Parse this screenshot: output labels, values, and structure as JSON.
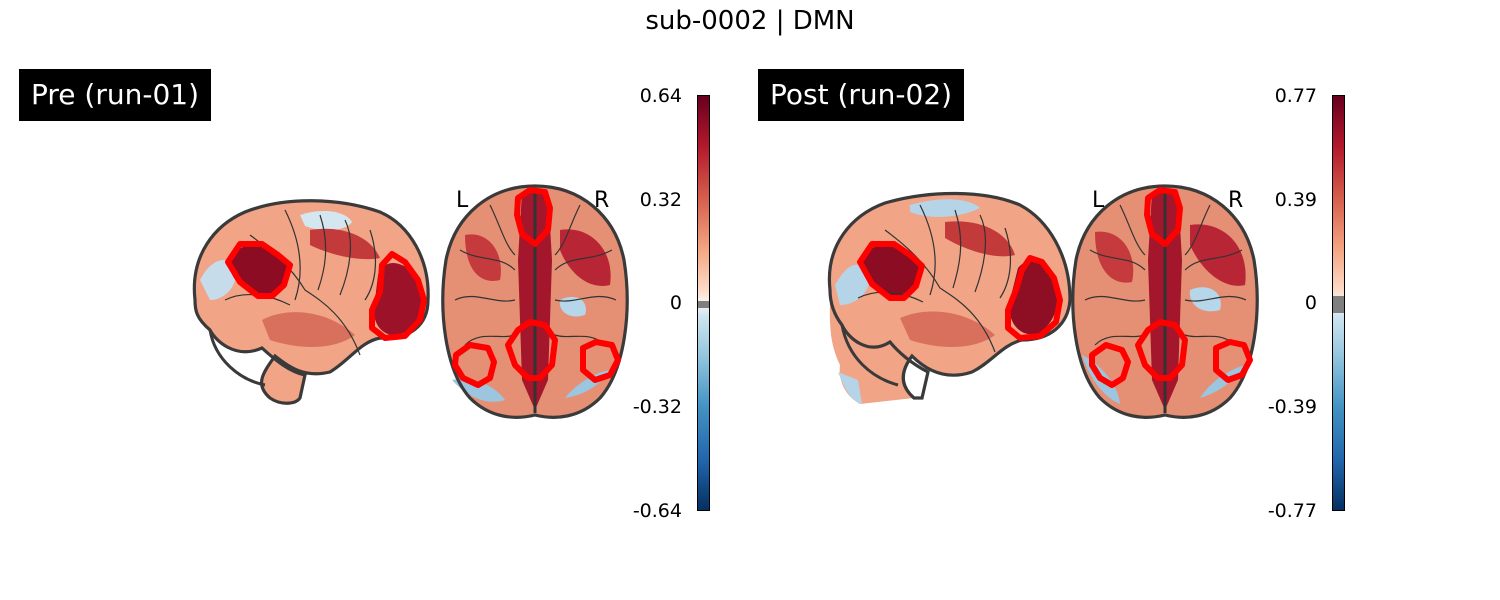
{
  "title": "sub-0002 | DMN",
  "panels": [
    {
      "label": "Pre (run-01)",
      "hemi_left": "L",
      "hemi_right": "R",
      "colorbar": {
        "ticks": [
          "0.64",
          "0.32",
          "0",
          "-0.32",
          "-0.64"
        ],
        "vmin": -0.64,
        "vmax": 0.64,
        "colormap": "RdBu_r",
        "threshold_band_color": "#7f7f7f"
      }
    },
    {
      "label": "Post (run-02)",
      "hemi_left": "L",
      "hemi_right": "R",
      "colorbar": {
        "ticks": [
          "0.77",
          "0.39",
          "0",
          "-0.39",
          "-0.77"
        ],
        "vmin": -0.77,
        "vmax": 0.77,
        "colormap": "RdBu_r",
        "threshold_band_color": "#7f7f7f"
      }
    }
  ],
  "contour_color": "#ff0000"
}
